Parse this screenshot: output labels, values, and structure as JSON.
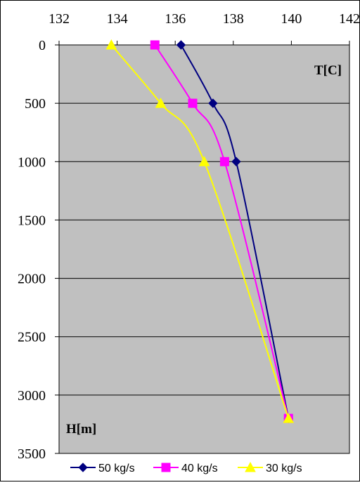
{
  "chart_data": {
    "type": "line",
    "title": "",
    "xlabel": "T[C]",
    "ylabel": "H[m]",
    "x_axis_position": "top",
    "y_axis_inverted": true,
    "xlim": [
      132,
      142
    ],
    "ylim": [
      0,
      3500
    ],
    "x_ticks": [
      "132",
      "134",
      "136",
      "138",
      "140",
      "142"
    ],
    "y_ticks": [
      "0",
      "500",
      "1000",
      "1500",
      "2000",
      "2500",
      "3000",
      "3500"
    ],
    "x_tick_values": [
      132,
      134,
      136,
      138,
      140,
      142
    ],
    "y_tick_values": [
      0,
      500,
      1000,
      1500,
      2000,
      2500,
      3000,
      3500
    ],
    "grid": "horizontal",
    "legend_position": "bottom",
    "series": [
      {
        "name": "50 kg/s",
        "color": "#000080",
        "marker": "diamond",
        "points": [
          {
            "temp": 136.2,
            "depth": 0
          },
          {
            "temp": 137.3,
            "depth": 500
          },
          {
            "temp": 138.1,
            "depth": 1000
          },
          {
            "temp": 139.9,
            "depth": 3200
          }
        ]
      },
      {
        "name": "40 kg/s",
        "color": "#ff00ff",
        "marker": "square",
        "points": [
          {
            "temp": 135.3,
            "depth": 0
          },
          {
            "temp": 136.6,
            "depth": 500
          },
          {
            "temp": 137.7,
            "depth": 1000
          },
          {
            "temp": 139.9,
            "depth": 3200
          }
        ]
      },
      {
        "name": "30 kg/s",
        "color": "#ffff00",
        "marker": "triangle",
        "points": [
          {
            "temp": 133.8,
            "depth": 0
          },
          {
            "temp": 135.5,
            "depth": 500
          },
          {
            "temp": 137.0,
            "depth": 1000
          },
          {
            "temp": 139.9,
            "depth": 3200
          }
        ]
      }
    ]
  },
  "colors": {
    "plot_background": "#c0c0c0",
    "axis": "#000000",
    "grid": "#000000"
  }
}
